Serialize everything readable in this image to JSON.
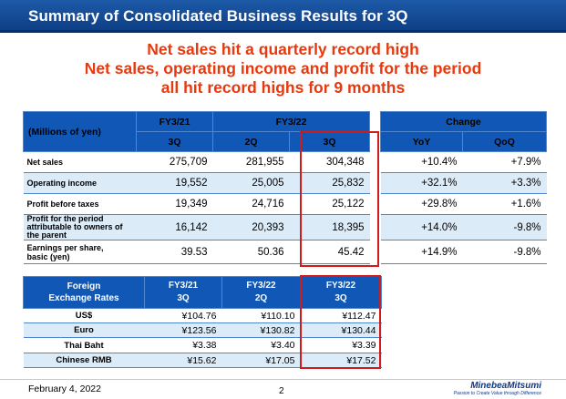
{
  "slide": {
    "title": "Summary of Consolidated Business Results for 3Q",
    "headlines": [
      "Net sales hit a quarterly record high",
      "Net sales, operating income and profit for the period",
      "all hit record highs for 9 months"
    ]
  },
  "results_table": {
    "unit_label": "(Millions of yen)",
    "period_groups": [
      "FY3/21",
      "FY3/22",
      "Change"
    ],
    "sub_columns": [
      "3Q",
      "2Q",
      "3Q",
      "YoY",
      "QoQ"
    ],
    "rows": [
      {
        "label": "Net sales",
        "sublabel": "",
        "values": [
          "275,709",
          "281,955",
          "304,348"
        ],
        "change": [
          "+10.4%",
          "+7.9%"
        ]
      },
      {
        "label": "Operating income",
        "sublabel": "",
        "values": [
          "19,552",
          "25,005",
          "25,832"
        ],
        "change": [
          "+32.1%",
          "+3.3%"
        ]
      },
      {
        "label": "Profit before taxes",
        "sublabel": "",
        "values": [
          "19,349",
          "24,716",
          "25,122"
        ],
        "change": [
          "+29.8%",
          "+1.6%"
        ]
      },
      {
        "label": "Profit for the period",
        "sublabel": "attributable to owners of the parent",
        "values": [
          "16,142",
          "20,393",
          "18,395"
        ],
        "change": [
          "+14.0%",
          "-9.8%"
        ]
      },
      {
        "label": "Earnings per share,",
        "sublabel": "basic (yen)",
        "values": [
          "39.53",
          "50.36",
          "45.42"
        ],
        "change": [
          "+14.9%",
          "-9.8%"
        ]
      }
    ]
  },
  "fx_table": {
    "header_line1": "Foreign",
    "header_line2": "Exchange Rates",
    "columns": [
      {
        "line1": "FY3/21",
        "line2": "3Q"
      },
      {
        "line1": "FY3/22",
        "line2": "2Q"
      },
      {
        "line1": "FY3/22",
        "line2": "3Q"
      }
    ],
    "rows": [
      {
        "label": "US$",
        "values": [
          "¥104.76",
          "¥110.10",
          "¥112.47"
        ]
      },
      {
        "label": "Euro",
        "values": [
          "¥123.56",
          "¥130.82",
          "¥130.44"
        ]
      },
      {
        "label": "Thai Baht",
        "values": [
          "¥3.38",
          "¥3.40",
          "¥3.39"
        ]
      },
      {
        "label": "Chinese RMB",
        "values": [
          "¥15.62",
          "¥17.05",
          "¥17.52"
        ]
      }
    ]
  },
  "footer": {
    "date": "February 4, 2022",
    "page": "2",
    "logo_name": "MinebeaMitsumi",
    "logo_tagline": "Passion to Create Value through Difference"
  },
  "colors": {
    "header_blue": "#1057b6",
    "row_alt": "#dcebf8",
    "headline_red": "#e8380d",
    "highlight_box": "#d11b1b"
  }
}
